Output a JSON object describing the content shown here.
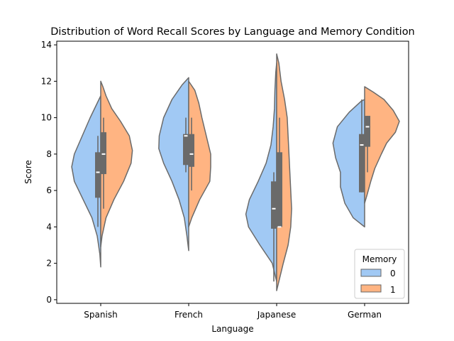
{
  "chart_data": {
    "type": "violin",
    "title": "Distribution of Word Recall Scores by Language and Memory Condition",
    "xlabel": "Language",
    "ylabel": "Score",
    "ylim": [
      -0.2,
      14.2
    ],
    "yticks": [
      0,
      2,
      4,
      6,
      8,
      10,
      12,
      14
    ],
    "categories": [
      "Spanish",
      "French",
      "Japanese",
      "German"
    ],
    "split": true,
    "legend": {
      "title": "Memory",
      "placement": "lower right",
      "entries": [
        "0",
        "1"
      ]
    },
    "series": [
      {
        "name": "0",
        "color": "#a1c9f4",
        "violins": [
          {
            "min": 1.8,
            "max": 11.2,
            "q1": 5.6,
            "median": 7.0,
            "q3": 8.1,
            "whisker_low": 4.0,
            "whisker_high": 9.0,
            "profile": [
              [
                1.8,
                0.0
              ],
              [
                2.5,
                0.02
              ],
              [
                3.5,
                0.08
              ],
              [
                4.5,
                0.2
              ],
              [
                5.5,
                0.4
              ],
              [
                6.5,
                0.6
              ],
              [
                7.3,
                0.66
              ],
              [
                8.0,
                0.6
              ],
              [
                9.0,
                0.42
              ],
              [
                10.0,
                0.24
              ],
              [
                10.8,
                0.08
              ],
              [
                11.2,
                0.0
              ]
            ]
          },
          {
            "min": 2.7,
            "max": 12.2,
            "q1": 7.4,
            "median": 9.0,
            "q3": 9.1,
            "whisker_low": 7.0,
            "whisker_high": 10.0,
            "profile": [
              [
                2.7,
                0.0
              ],
              [
                3.5,
                0.04
              ],
              [
                4.5,
                0.1
              ],
              [
                5.5,
                0.22
              ],
              [
                6.5,
                0.38
              ],
              [
                7.5,
                0.57
              ],
              [
                8.3,
                0.68
              ],
              [
                9.0,
                0.67
              ],
              [
                10.0,
                0.57
              ],
              [
                11.0,
                0.38
              ],
              [
                11.8,
                0.15
              ],
              [
                12.2,
                0.0
              ]
            ]
          },
          {
            "min": 1.0,
            "max": 13.0,
            "q1": 3.9,
            "median": 5.0,
            "q3": 6.5,
            "whisker_low": 1.0,
            "whisker_high": 7.0,
            "profile": [
              [
                1.0,
                0.0
              ],
              [
                2.0,
                0.1
              ],
              [
                3.0,
                0.38
              ],
              [
                4.0,
                0.64
              ],
              [
                4.7,
                0.7
              ],
              [
                5.5,
                0.62
              ],
              [
                6.5,
                0.42
              ],
              [
                7.5,
                0.24
              ],
              [
                8.5,
                0.13
              ],
              [
                9.5,
                0.08
              ],
              [
                10.5,
                0.05
              ],
              [
                11.5,
                0.04
              ],
              [
                12.5,
                0.02
              ],
              [
                13.0,
                0.0
              ]
            ]
          },
          {
            "min": 4.0,
            "max": 11.0,
            "q1": 5.9,
            "median": 8.5,
            "q3": 9.1,
            "whisker_low": 5.9,
            "whisker_high": 11.0,
            "profile": [
              [
                4.0,
                0.0
              ],
              [
                4.5,
                0.26
              ],
              [
                5.3,
                0.45
              ],
              [
                6.2,
                0.55
              ],
              [
                7.0,
                0.55
              ],
              [
                7.8,
                0.66
              ],
              [
                8.6,
                0.72
              ],
              [
                9.5,
                0.62
              ],
              [
                10.3,
                0.35
              ],
              [
                10.9,
                0.08
              ],
              [
                11.0,
                0.0
              ]
            ]
          }
        ]
      },
      {
        "name": "1",
        "color": "#ffb482",
        "violins": [
          {
            "min": 2.9,
            "max": 12.0,
            "q1": 6.9,
            "median": 8.0,
            "q3": 9.2,
            "whisker_low": 5.0,
            "whisker_high": 10.0,
            "profile": [
              [
                2.9,
                0.0
              ],
              [
                3.5,
                0.03
              ],
              [
                4.5,
                0.12
              ],
              [
                5.5,
                0.3
              ],
              [
                6.5,
                0.52
              ],
              [
                7.5,
                0.69
              ],
              [
                8.2,
                0.72
              ],
              [
                9.0,
                0.65
              ],
              [
                9.8,
                0.45
              ],
              [
                10.5,
                0.25
              ],
              [
                11.2,
                0.12
              ],
              [
                11.7,
                0.05
              ],
              [
                12.0,
                0.0
              ]
            ]
          },
          {
            "min": 4.0,
            "max": 12.0,
            "q1": 7.3,
            "median": 8.0,
            "q3": 9.1,
            "whisker_low": 6.0,
            "whisker_high": 10.0,
            "profile": [
              [
                4.0,
                0.0
              ],
              [
                4.5,
                0.07
              ],
              [
                5.5,
                0.25
              ],
              [
                6.5,
                0.48
              ],
              [
                7.3,
                0.5
              ],
              [
                8.0,
                0.5
              ],
              [
                9.0,
                0.4
              ],
              [
                10.0,
                0.3
              ],
              [
                10.8,
                0.23
              ],
              [
                11.5,
                0.14
              ],
              [
                12.0,
                0.0
              ]
            ]
          },
          {
            "min": 0.5,
            "max": 13.5,
            "q1": 4.0,
            "median": 4.0,
            "q3": 8.1,
            "whisker_low": 4.0,
            "whisker_high": 10.0,
            "profile": [
              [
                0.5,
                0.0
              ],
              [
                1.2,
                0.07
              ],
              [
                2.0,
                0.15
              ],
              [
                3.0,
                0.26
              ],
              [
                4.0,
                0.32
              ],
              [
                5.0,
                0.34
              ],
              [
                6.0,
                0.32
              ],
              [
                7.0,
                0.3
              ],
              [
                8.0,
                0.28
              ],
              [
                9.0,
                0.26
              ],
              [
                10.0,
                0.24
              ],
              [
                11.0,
                0.18
              ],
              [
                12.0,
                0.1
              ],
              [
                13.0,
                0.05
              ],
              [
                13.5,
                0.0
              ]
            ]
          },
          {
            "min": 5.3,
            "max": 11.7,
            "q1": 8.4,
            "median": 9.5,
            "q3": 10.1,
            "whisker_low": 7.0,
            "whisker_high": 10.1,
            "profile": [
              [
                5.3,
                0.0
              ],
              [
                5.8,
                0.06
              ],
              [
                6.5,
                0.14
              ],
              [
                7.2,
                0.23
              ],
              [
                8.0,
                0.38
              ],
              [
                8.6,
                0.5
              ],
              [
                9.2,
                0.7
              ],
              [
                9.8,
                0.79
              ],
              [
                10.4,
                0.65
              ],
              [
                11.0,
                0.44
              ],
              [
                11.4,
                0.2
              ],
              [
                11.7,
                0.0
              ]
            ]
          }
        ]
      }
    ]
  }
}
